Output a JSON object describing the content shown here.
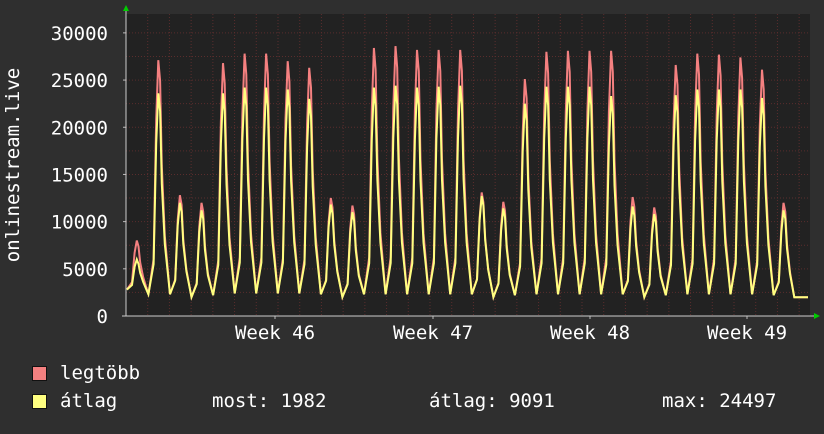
{
  "chart_data": {
    "type": "line",
    "ylabel": "onlinestream.live",
    "ylim": [
      0,
      32000
    ],
    "yticks": [
      0,
      5000,
      10000,
      15000,
      20000,
      25000,
      30000
    ],
    "ytick_labels": [
      "0",
      "5000",
      "10000",
      "15000",
      "20000",
      "25000",
      "30000"
    ],
    "xticks": [
      "Week 46",
      "Week 47",
      "Week 48",
      "Week 49"
    ],
    "grid": true,
    "colors": {
      "background": "#2f2f2f",
      "plot_background": "#222222",
      "grid": "#5a2d2d",
      "max_line": "#f48080",
      "avg_line": "#ffff80",
      "axis_arrow": "#00cc00"
    },
    "daily_peaks": {
      "max": [
        8000,
        27100,
        12800,
        12000,
        26800,
        27800,
        27800,
        27000,
        26300,
        12500,
        11700,
        28400,
        28600,
        28200,
        28200,
        28200,
        13100,
        12100,
        25100,
        28000,
        28100,
        28100,
        28100,
        12600,
        11500,
        26600,
        27800,
        27700,
        27400,
        26100,
        12000
      ],
      "avg": [
        6000,
        23600,
        12000,
        11200,
        23600,
        24200,
        24200,
        24000,
        23000,
        11800,
        11000,
        24200,
        24400,
        24200,
        24300,
        24400,
        12700,
        11400,
        22500,
        24300,
        24300,
        24300,
        23300,
        11600,
        10800,
        23400,
        24000,
        24000,
        24000,
        23100,
        11200
      ]
    },
    "daily_troughs": [
      2800,
      2300,
      2300,
      2000,
      2200,
      2400,
      2400,
      2400,
      2400,
      2300,
      2000,
      2300,
      2300,
      2300,
      2300,
      2300,
      2300,
      2000,
      2200,
      2300,
      2300,
      2300,
      2300,
      2300,
      2000,
      2200,
      2300,
      2300,
      2300,
      2300,
      2200,
      1982
    ]
  },
  "legend": {
    "max_label": "legtöbb",
    "avg_label": "átlag"
  },
  "stats": {
    "current": "most: 1982",
    "average": "átlag: 9091",
    "maximum": "max: 24497"
  }
}
